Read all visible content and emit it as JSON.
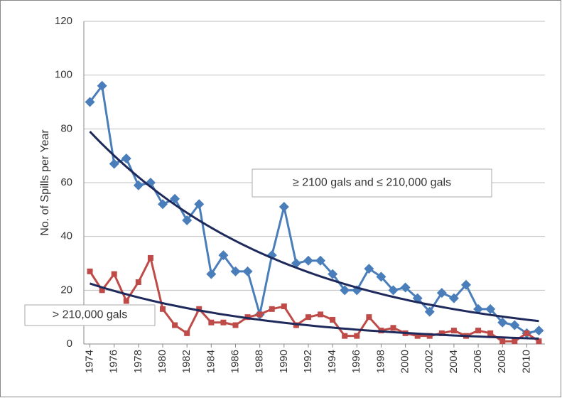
{
  "chart_data": {
    "type": "line",
    "y_label": "No. of Spills per Year",
    "x": [
      1974,
      1975,
      1976,
      1977,
      1978,
      1979,
      1980,
      1981,
      1982,
      1983,
      1984,
      1985,
      1986,
      1987,
      1988,
      1989,
      1990,
      1991,
      1992,
      1993,
      1994,
      1995,
      1996,
      1997,
      1998,
      1999,
      2000,
      2001,
      2002,
      2003,
      2004,
      2005,
      2006,
      2007,
      2008,
      2009,
      2010,
      2011
    ],
    "xlim": [
      1973.5,
      2011.5
    ],
    "xticks": [
      1974,
      1976,
      1978,
      1980,
      1982,
      1984,
      1986,
      1988,
      1990,
      1992,
      1994,
      1996,
      1998,
      2000,
      2002,
      2004,
      2006,
      2008,
      2010
    ],
    "ylim": [
      0,
      120
    ],
    "yticks": [
      0,
      20,
      40,
      60,
      80,
      100,
      120
    ],
    "grid": true,
    "series": [
      {
        "name": "≥ 2100 gals and ≤  210,000 gals",
        "color": "#4a7ebb",
        "marker": "diamond",
        "values": [
          90,
          96,
          67,
          69,
          59,
          60,
          52,
          54,
          46,
          52,
          26,
          33,
          27,
          27,
          11,
          33,
          51,
          30,
          31,
          31,
          26,
          20,
          20,
          28,
          25,
          20,
          21,
          17,
          12,
          19,
          17,
          22,
          13,
          13,
          8,
          7,
          4,
          5
        ],
        "trendline": {
          "kind": "exponential",
          "color": "#1f2a5c",
          "values": [
            79,
            8.5
          ]
        }
      },
      {
        "name": "> 210,000 gals",
        "color": "#be4b48",
        "marker": "square",
        "values": [
          27,
          20,
          26,
          16,
          23,
          32,
          13,
          7,
          4,
          13,
          8,
          8,
          7,
          10,
          11,
          13,
          14,
          7,
          10,
          11,
          9,
          3,
          3,
          10,
          5,
          6,
          4,
          3,
          3,
          4,
          5,
          3,
          5,
          4,
          1,
          1,
          4,
          1
        ],
        "trendline": {
          "kind": "exponential",
          "color": "#1f2a5c",
          "values": [
            22.5,
            2
          ]
        }
      }
    ]
  }
}
